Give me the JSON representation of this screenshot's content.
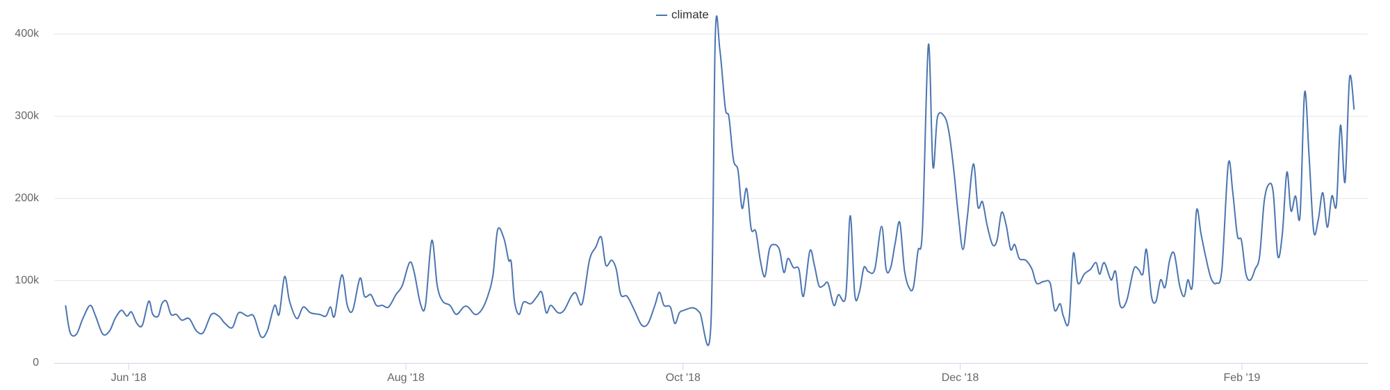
{
  "chart_data": {
    "type": "line",
    "series": [
      {
        "name": "climate",
        "color": "#4a74b0",
        "values": [
          70000,
          37000,
          35000,
          54000,
          70000,
          57000,
          35000,
          39000,
          54000,
          64000,
          57000,
          62000,
          48000,
          46000,
          75000,
          59000,
          57000,
          72000,
          75000,
          59000,
          59000,
          52000,
          54000,
          39000,
          37000,
          59000,
          57000,
          48000,
          43000,
          61000,
          57000,
          57000,
          32000,
          39000,
          70000,
          59000,
          105000,
          75000,
          54000,
          68000,
          61000,
          59000,
          57000,
          68000,
          57000,
          107000,
          70000,
          64000,
          103000,
          81000,
          83000,
          70000,
          70000,
          68000,
          83000,
          94000,
          122000,
          111000,
          72000,
          70000,
          149000,
          94000,
          75000,
          70000,
          59000,
          68000,
          68000,
          59000,
          64000,
          81000,
          108000,
          162000,
          151000,
          125000,
          122000,
          75000,
          59000,
          74000,
          72000,
          81000,
          86000,
          61000,
          70000,
          61000,
          64000,
          81000,
          85000,
          72000,
          125000,
          141000,
          153000,
          119000,
          125000,
          114000,
          83000,
          81000,
          64000,
          46000,
          48000,
          70000,
          86000,
          70000,
          68000,
          48000,
          61000,
          64000,
          67000,
          61000,
          43000,
          398000,
          381000,
          310000,
          299000,
          247000,
          234000,
          188000,
          212000,
          163000,
          160000,
          125000,
          105000,
          138000,
          144000,
          138000,
          110000,
          127000,
          116000,
          114000,
          81000,
          136000,
          119000,
          94000,
          94000,
          97000,
          70000,
          83000,
          81000,
          179000,
          83000,
          86000,
          116000,
          111000,
          114000,
          166000,
          114000,
          116000,
          146000,
          171000,
          114000,
          92000,
          92000,
          136000,
          163000,
          387000,
          239000,
          299000,
          299000,
          278000,
          234000,
          179000,
          138000,
          179000,
          242000,
          190000,
          196000,
          168000,
          144000,
          149000,
          183000,
          168000,
          138000,
          144000,
          127000,
          125000,
          114000,
          97000,
          99000,
          97000,
          64000,
          72000,
          57000,
          50000,
          133000,
          97000,
          108000,
          114000,
          122000,
          108000,
          122000,
          101000,
          111000,
          70000,
          75000,
          114000,
          114000,
          108000,
          138000,
          81000,
          75000,
          101000,
          92000,
          125000,
          133000,
          94000,
          81000,
          101000,
          94000,
          185000,
          157000,
          130000,
          103000,
          97000,
          114000,
          242000,
          207000,
          155000,
          149000,
          108000,
          101000,
          114000,
          130000,
          196000,
          217000,
          207000,
          130000,
          157000,
          232000,
          185000,
          203000,
          179000,
          329000,
          250000,
          160000,
          174000,
          207000,
          165000,
          203000,
          192000,
          289000,
          220000,
          347000,
          308000
        ]
      }
    ],
    "x": [
      -13.9,
      -12.9,
      -11.5,
      -10.1,
      -8.5,
      -7.3,
      -5.7,
      -4.2,
      -3.0,
      -1.6,
      -0.4,
      0.6,
      1.8,
      3.0,
      4.4,
      5.3,
      6.5,
      7.3,
      8.3,
      9.3,
      10.5,
      11.7,
      13.3,
      14.9,
      16.4,
      18.2,
      19.8,
      21.2,
      22.8,
      24.2,
      26.1,
      27.5,
      29.1,
      30.5,
      32.1,
      33.1,
      34.3,
      35.4,
      37.0,
      38.4,
      40.0,
      42.0,
      43.4,
      44.4,
      45.3,
      46.9,
      48.1,
      49.3,
      50.9,
      51.9,
      53.3,
      54.5,
      55.8,
      57.2,
      58.8,
      60.2,
      61.8,
      62.8,
      64.2,
      65.3,
      66.7,
      67.9,
      69.1,
      70.7,
      72.1,
      73.7,
      74.7,
      76.2,
      77.6,
      79.0,
      80.2,
      81.2,
      82.6,
      83.6,
      84.2,
      84.9,
      85.9,
      86.9,
      88.5,
      89.9,
      90.9,
      91.9,
      92.9,
      94.5,
      95.8,
      97.4,
      98.4,
      99.8,
      101.4,
      102.8,
      104.0,
      105.0,
      106.3,
      107.3,
      108.3,
      109.7,
      111.3,
      112.9,
      114.3,
      115.8,
      116.8,
      117.8,
      119.2,
      120.2,
      121.2,
      122.2,
      124.2,
      125.7,
      128.1,
      129.1,
      130.1,
      131.3,
      132.1,
      133.1,
      134.1,
      135.0,
      136.0,
      137.0,
      138.0,
      139.0,
      140.0,
      141.0,
      142.0,
      143.2,
      144.2,
      145.1,
      146.3,
      147.5,
      148.5,
      149.9,
      150.9,
      151.9,
      152.9,
      153.9,
      155.2,
      156.2,
      157.8,
      158.8,
      159.8,
      160.8,
      161.8,
      162.8,
      164.2,
      165.7,
      166.7,
      167.7,
      168.7,
      169.7,
      170.7,
      171.7,
      172.7,
      173.7,
      174.7,
      176.0,
      177.0,
      178.0,
      179.6,
      180.6,
      181.6,
      182.6,
      183.6,
      184.6,
      185.9,
      186.9,
      187.9,
      188.9,
      190.1,
      191.1,
      192.1,
      193.1,
      194.1,
      195.0,
      196.0,
      197.4,
      198.8,
      199.8,
      201.4,
      202.8,
      203.8,
      205.0,
      205.7,
      206.9,
      207.9,
      208.9,
      210.3,
      211.7,
      212.9,
      213.7,
      214.7,
      216.2,
      217.2,
      218.2,
      219.6,
      221.2,
      222.2,
      223.2,
      224.0,
      225.1,
      226.1,
      227.1,
      228.1,
      229.1,
      230.1,
      231.3,
      232.3,
      233.1,
      234.1,
      235.0,
      236.0,
      237.0,
      238.2,
      239.4,
      240.6,
      242.0,
      243.0,
      244.0,
      244.9,
      245.9,
      246.9,
      247.9,
      248.9,
      249.9,
      250.9,
      251.9,
      252.9,
      253.9,
      254.9,
      255.8,
      256.8,
      257.8,
      258.8,
      259.8,
      260.8,
      261.8,
      262.8,
      263.8,
      264.8,
      265.8,
      266.7,
      267.7,
      268.7,
      269.7
    ],
    "xlim": [
      -16.4,
      272.7
    ],
    "xticks": [
      {
        "value": 0,
        "label": "Jun '18"
      },
      {
        "value": 61,
        "label": "Aug '18"
      },
      {
        "value": 122,
        "label": "Oct '18"
      },
      {
        "value": 183,
        "label": "Dec '18"
      },
      {
        "value": 245,
        "label": "Feb '19"
      }
    ],
    "ylim": [
      0,
      400000
    ],
    "yticks": [
      {
        "value": 0,
        "label": "0"
      },
      {
        "value": 100000,
        "label": "100k"
      },
      {
        "value": 200000,
        "label": "200k"
      },
      {
        "value": 300000,
        "label": "300k"
      },
      {
        "value": 400000,
        "label": "400k"
      }
    ],
    "grid": true,
    "legend": "top"
  }
}
